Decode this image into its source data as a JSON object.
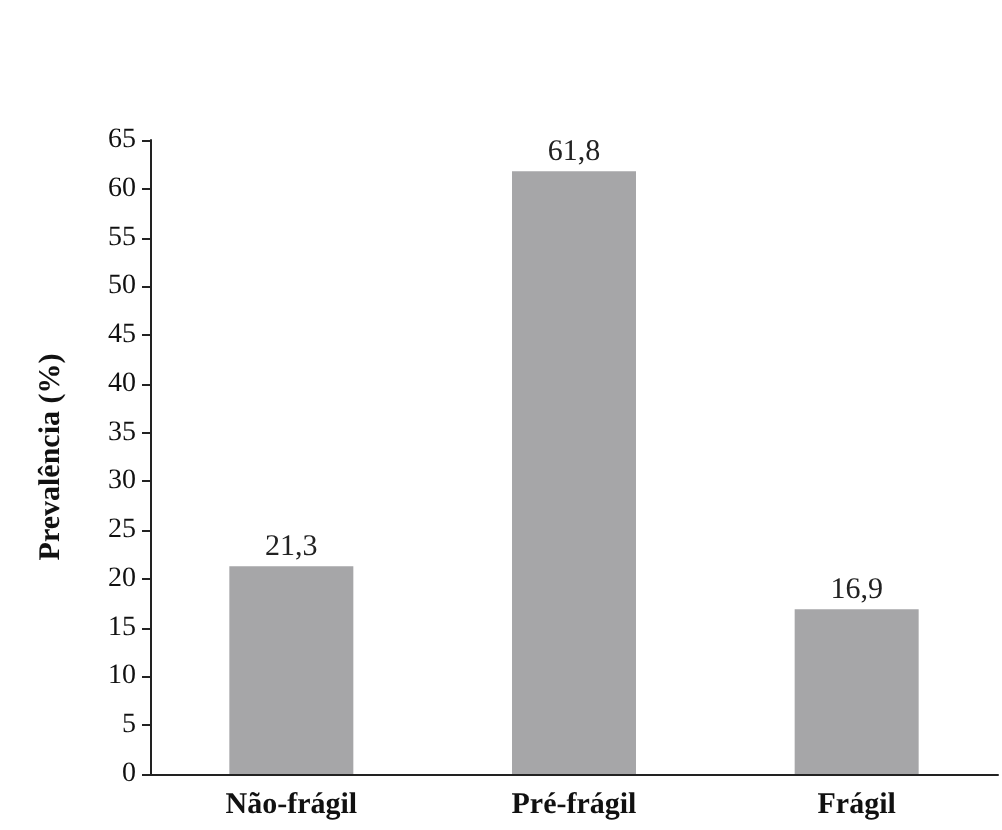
{
  "chart_data": {
    "type": "bar",
    "ylabel": "Prevalência (%)",
    "categories": [
      "Não-frágil",
      "Pré-frágil",
      "Frágil"
    ],
    "values": [
      21.3,
      61.8,
      16.9
    ],
    "value_labels": [
      "21,3",
      "61,8",
      "16,9"
    ],
    "color": "#a6a6a8",
    "ylim": [
      0,
      65
    ],
    "yticks": [
      0,
      5,
      10,
      15,
      20,
      25,
      30,
      35,
      40,
      45,
      50,
      55,
      60,
      65
    ],
    "grid": false
  }
}
